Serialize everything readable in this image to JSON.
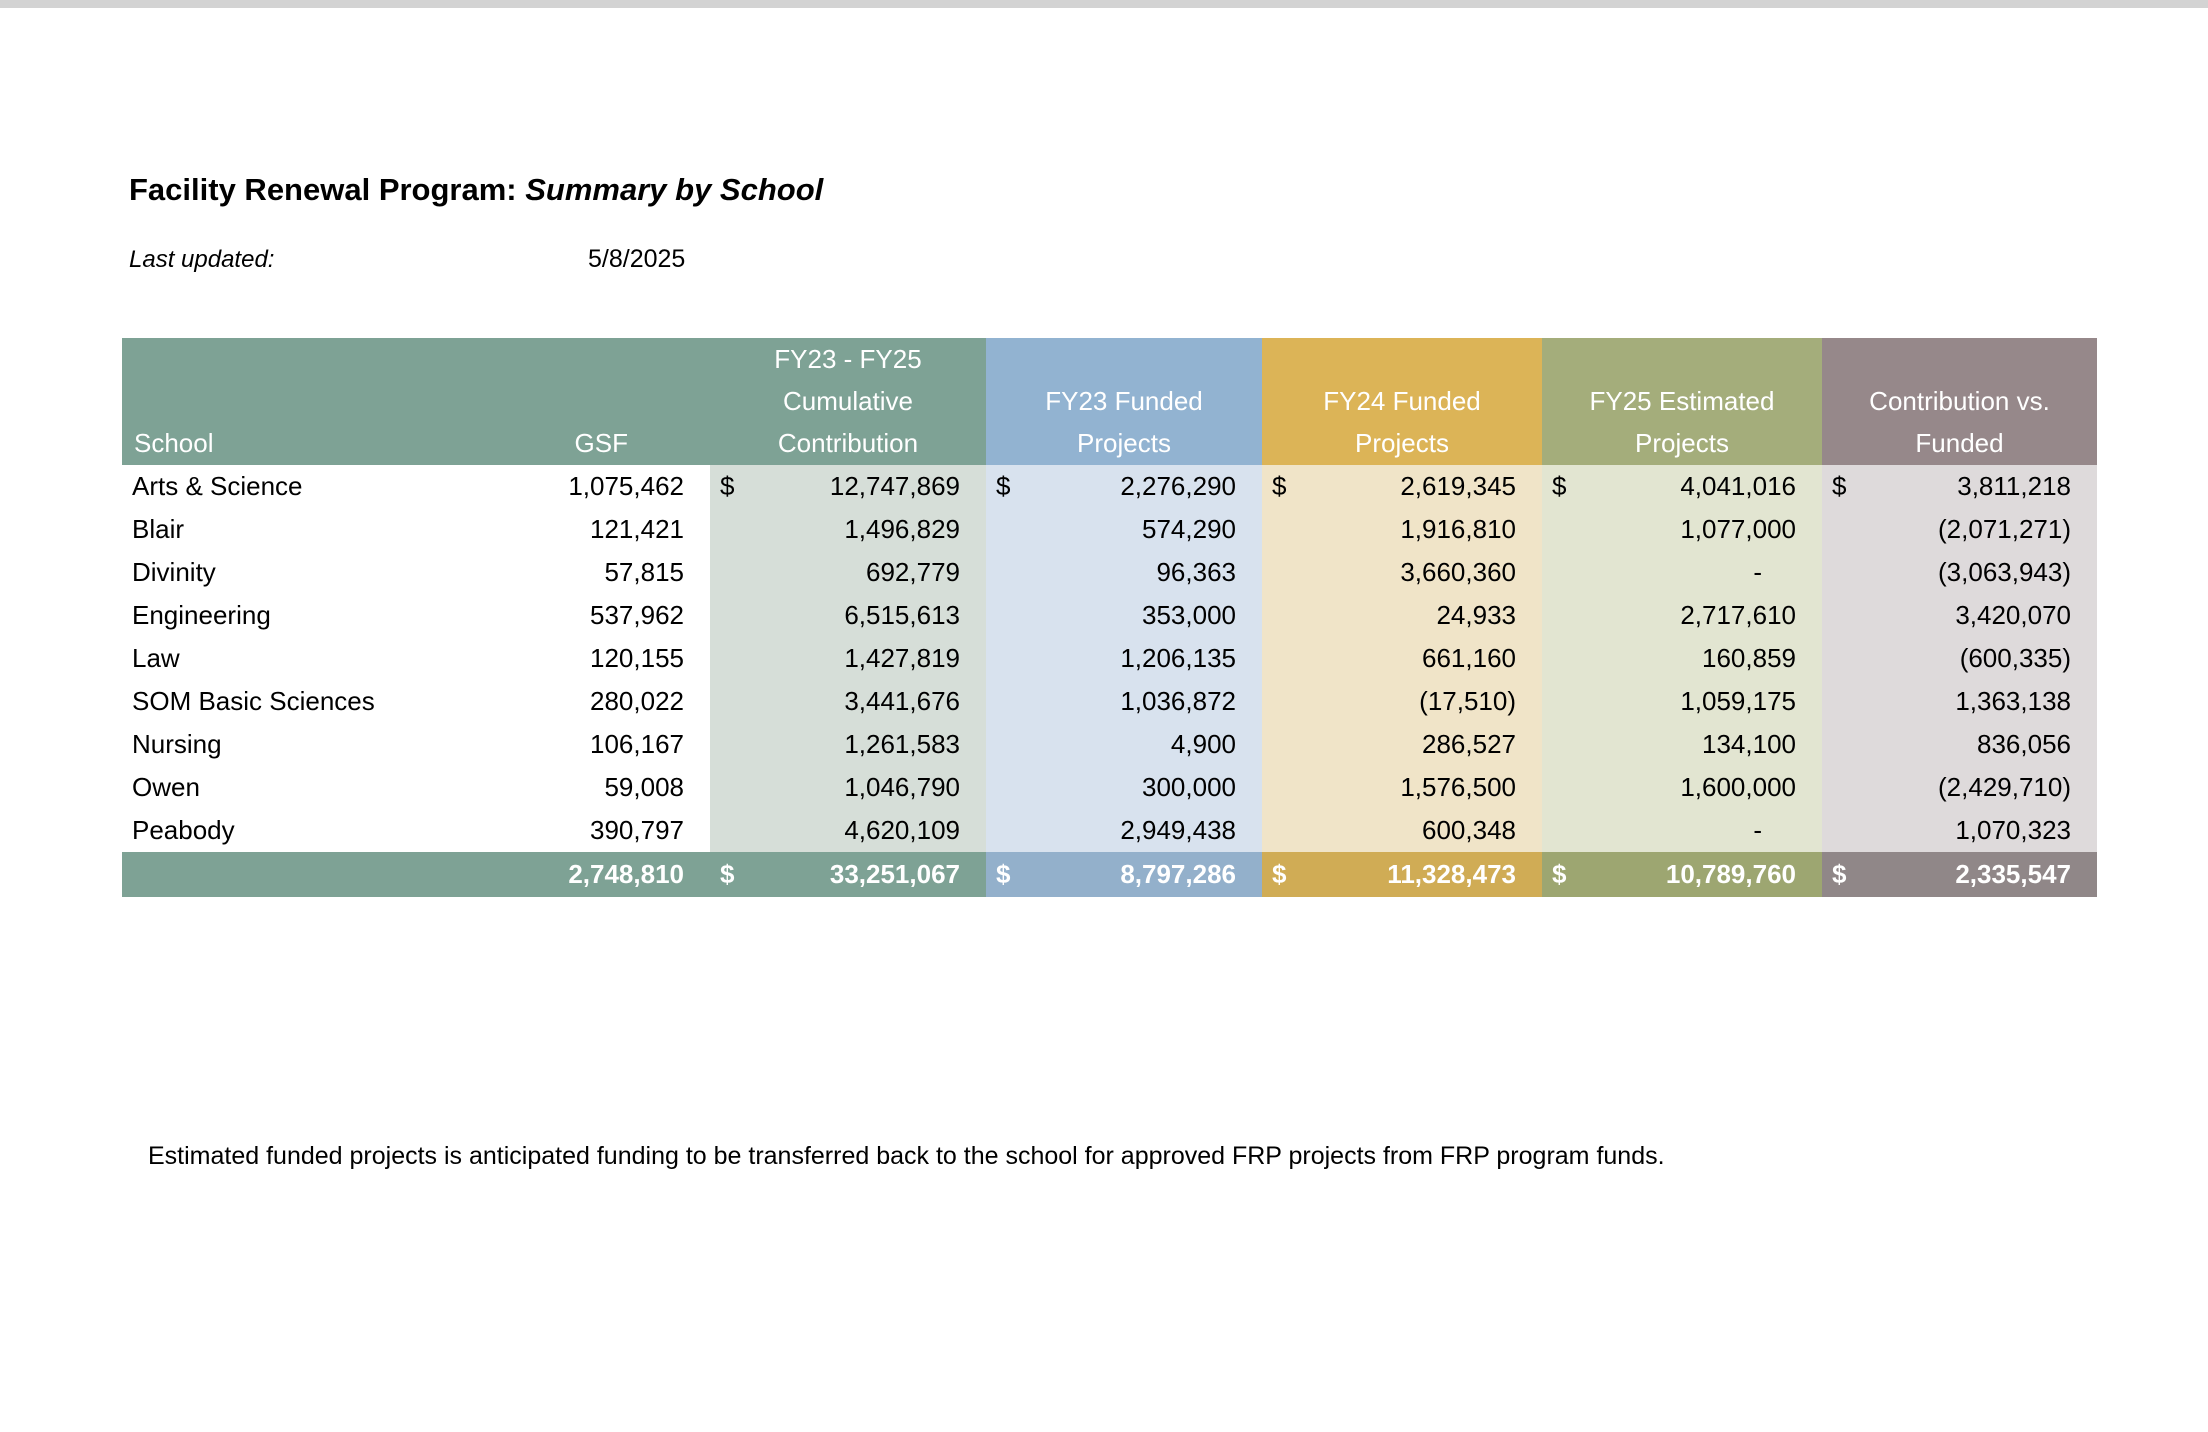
{
  "header": {
    "title_main": "Facility Renewal Program: ",
    "title_emphasis": "Summary by School",
    "last_updated_label": "Last updated:",
    "last_updated_value": "5/8/2025"
  },
  "table": {
    "col_headers": {
      "school": "School",
      "gsf": "GSF",
      "cumulative": [
        "FY23 - FY25",
        "Cumulative",
        "Contribution"
      ],
      "fy23": [
        "FY23 Funded",
        "Projects"
      ],
      "fy24": [
        "FY24 Funded",
        "Projects"
      ],
      "fy25": [
        "FY25 Estimated",
        "Projects"
      ],
      "cvf": [
        "Contribution vs.",
        "Funded"
      ]
    },
    "rows": [
      {
        "school": "Arts & Science",
        "gsf": "1,075,462",
        "cum": {
          "d": "$",
          "v": "12,747,869"
        },
        "fy23": {
          "d": "$",
          "v": "2,276,290"
        },
        "fy24": {
          "d": "$",
          "v": "2,619,345"
        },
        "fy25": {
          "d": "$",
          "v": "4,041,016"
        },
        "cvf": {
          "d": "$",
          "v": "3,811,218"
        }
      },
      {
        "school": "Blair",
        "gsf": "121,421",
        "cum": {
          "v": "1,496,829"
        },
        "fy23": {
          "v": "574,290"
        },
        "fy24": {
          "v": "1,916,810"
        },
        "fy25": {
          "v": "1,077,000"
        },
        "cvf": {
          "v": "(2,071,271)"
        }
      },
      {
        "school": "Divinity",
        "gsf": "57,815",
        "cum": {
          "v": "692,779"
        },
        "fy23": {
          "v": "96,363"
        },
        "fy24": {
          "v": "3,660,360"
        },
        "fy25": {
          "v": "-"
        },
        "cvf": {
          "v": "(3,063,943)"
        }
      },
      {
        "school": "Engineering",
        "gsf": "537,962",
        "cum": {
          "v": "6,515,613"
        },
        "fy23": {
          "v": "353,000"
        },
        "fy24": {
          "v": "24,933"
        },
        "fy25": {
          "v": "2,717,610"
        },
        "cvf": {
          "v": "3,420,070"
        }
      },
      {
        "school": "Law",
        "gsf": "120,155",
        "cum": {
          "v": "1,427,819"
        },
        "fy23": {
          "v": "1,206,135"
        },
        "fy24": {
          "v": "661,160"
        },
        "fy25": {
          "v": "160,859"
        },
        "cvf": {
          "v": "(600,335)"
        }
      },
      {
        "school": "SOM Basic Sciences",
        "gsf": "280,022",
        "cum": {
          "v": "3,441,676"
        },
        "fy23": {
          "v": "1,036,872"
        },
        "fy24": {
          "v": "(17,510)"
        },
        "fy25": {
          "v": "1,059,175"
        },
        "cvf": {
          "v": "1,363,138"
        }
      },
      {
        "school": "Nursing",
        "gsf": "106,167",
        "cum": {
          "v": "1,261,583"
        },
        "fy23": {
          "v": "4,900"
        },
        "fy24": {
          "v": "286,527"
        },
        "fy25": {
          "v": "134,100"
        },
        "cvf": {
          "v": "836,056"
        }
      },
      {
        "school": "Owen",
        "gsf": "59,008",
        "cum": {
          "v": "1,046,790"
        },
        "fy23": {
          "v": "300,000"
        },
        "fy24": {
          "v": "1,576,500"
        },
        "fy25": {
          "v": "1,600,000"
        },
        "cvf": {
          "v": "(2,429,710)"
        }
      },
      {
        "school": "Peabody",
        "gsf": "390,797",
        "cum": {
          "v": "4,620,109"
        },
        "fy23": {
          "v": "2,949,438"
        },
        "fy24": {
          "v": "600,348"
        },
        "fy25": {
          "v": "-"
        },
        "cvf": {
          "v": "1,070,323"
        }
      }
    ],
    "totals": {
      "gsf": "2,748,810",
      "cum": {
        "d": "$",
        "v": "33,251,067"
      },
      "fy23": {
        "d": "$",
        "v": "8,797,286"
      },
      "fy24": {
        "d": "$",
        "v": "11,328,473"
      },
      "fy25": {
        "d": "$",
        "v": "10,789,760"
      },
      "cvf": {
        "d": "$",
        "v": "2,335,547"
      }
    }
  },
  "footnote": "Estimated funded projects is anticipated funding to be transferred back to the school for approved FRP projects from FRP program funds.",
  "colors": {
    "window_strip": "#d3d3d3",
    "header_sage": "#7ea295",
    "header_blue": "#92b3d1",
    "header_gold": "#dcb457",
    "header_olive": "#a4ad7b",
    "header_gray": "#96888a",
    "tint_sage": "#d6ded8",
    "tint_blue": "#d8e2ee",
    "tint_gold": "#f0e4c8",
    "tint_olive": "#e2e5d1",
    "tint_gray": "#dedadb",
    "total_blue": "#93b0cb",
    "total_gold": "#d0ac55",
    "total_olive": "#9da671",
    "total_gray": "#908788"
  }
}
